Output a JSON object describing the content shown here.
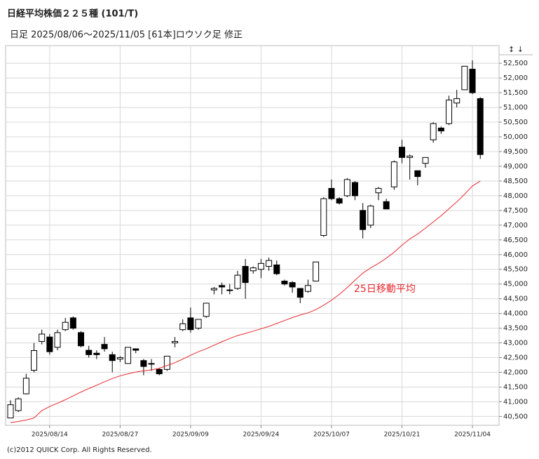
{
  "chart_data": {
    "type": "candlestick",
    "title": "日経平均株価２２５種 (101/T)",
    "subtitle": "日足  2025/08/06～2025/11/05 [61本]ロウソク足 修正",
    "controls": "↕ ↓",
    "footer": "(c)2012 QUICK Corp. All Rights Reserved.",
    "categories": [
      null,
      null,
      null,
      null,
      null,
      "2025/08/14",
      null,
      null,
      null,
      null,
      null,
      null,
      null,
      null,
      "2025/08/27",
      null,
      null,
      null,
      null,
      null,
      null,
      null,
      null,
      "2025/09/09",
      null,
      null,
      null,
      null,
      null,
      null,
      null,
      null,
      "2025/09/24",
      null,
      null,
      null,
      null,
      null,
      null,
      null,
      null,
      "2025/10/07",
      null,
      null,
      null,
      null,
      null,
      null,
      null,
      null,
      "2025/10/21",
      null,
      null,
      null,
      null,
      null,
      null,
      null,
      null,
      "2025/11/04",
      null
    ],
    "open": [
      40450,
      40700,
      41270,
      42070,
      43050,
      43200,
      42850,
      43450,
      43850,
      43350,
      42750,
      42650,
      42950,
      42600,
      42450,
      42300,
      42800,
      42400,
      42300,
      42100,
      42100,
      43000,
      43450,
      43850,
      43500,
      43900,
      44800,
      44950,
      44800,
      44850,
      45600,
      45450,
      45500,
      45600,
      45650,
      45100,
      45050,
      44850,
      44750,
      45100,
      46650,
      48250,
      47900,
      48000,
      48450,
      47500,
      47000,
      48100,
      47800,
      48300,
      49650,
      49300,
      48850,
      49100,
      49900,
      50300,
      50450,
      51150,
      51600,
      52300,
      51300
    ],
    "high": [
      41050,
      41150,
      41950,
      43000,
      43450,
      43300,
      43450,
      43850,
      43900,
      43400,
      42900,
      42750,
      43200,
      42700,
      42550,
      42850,
      42800,
      42450,
      42450,
      42150,
      42550,
      43200,
      43800,
      44200,
      43800,
      44350,
      44900,
      45050,
      45000,
      45450,
      45850,
      45600,
      45850,
      45900,
      45800,
      45150,
      45100,
      44850,
      45150,
      45750,
      47950,
      48550,
      47950,
      48600,
      48500,
      47750,
      47700,
      48300,
      47900,
      49200,
      49900,
      49400,
      48850,
      49300,
      50500,
      50350,
      51400,
      51600,
      52400,
      52600,
      51350
    ],
    "low": [
      40450,
      40650,
      41250,
      42000,
      42950,
      42600,
      42750,
      43400,
      43450,
      42850,
      42500,
      42450,
      42700,
      42000,
      42350,
      42300,
      42650,
      41900,
      42050,
      41900,
      42050,
      42850,
      43400,
      43350,
      43450,
      43850,
      44650,
      44650,
      44650,
      44800,
      44500,
      45350,
      45200,
      45450,
      45300,
      44950,
      44700,
      44350,
      44700,
      45100,
      46600,
      47850,
      47700,
      47950,
      47850,
      46550,
      46900,
      47850,
      47550,
      48200,
      49100,
      48550,
      48350,
      48950,
      49800,
      50100,
      50400,
      51000,
      51600,
      51450,
      49250
    ],
    "close": [
      40900,
      41100,
      41800,
      42740,
      43300,
      42700,
      43350,
      43700,
      43500,
      42900,
      42600,
      42600,
      42800,
      42400,
      42500,
      42850,
      42750,
      42200,
      42300,
      41950,
      42550,
      43050,
      43650,
      43450,
      43800,
      44350,
      44850,
      44900,
      44800,
      45300,
      45050,
      45550,
      45700,
      45800,
      45350,
      45000,
      44900,
      44550,
      44950,
      45750,
      47900,
      47900,
      47750,
      48550,
      48000,
      46850,
      47650,
      48250,
      47550,
      49150,
      49300,
      49350,
      48650,
      49300,
      50450,
      50200,
      51250,
      51300,
      52400,
      51500,
      49400
    ],
    "series": [
      {
        "name": "25日移動平均",
        "color": "#e8282d",
        "values": [
          40290,
          40330,
          40380,
          40450,
          40700,
          40840,
          40950,
          41070,
          41200,
          41330,
          41450,
          41560,
          41680,
          41790,
          41880,
          41950,
          42010,
          42050,
          42080,
          42140,
          42230,
          42330,
          42450,
          42580,
          42700,
          42800,
          42920,
          43040,
          43150,
          43250,
          43320,
          43400,
          43480,
          43560,
          43660,
          43760,
          43860,
          43950,
          44020,
          44130,
          44280,
          44450,
          44650,
          44880,
          45130,
          45370,
          45550,
          45700,
          45880,
          46080,
          46320,
          46530,
          46700,
          46900,
          47110,
          47320,
          47560,
          47790,
          48050,
          48330,
          48500
        ]
      }
    ],
    "ylim": [
      40200,
      53100
    ],
    "yticks": [
      {
        "value": 40500,
        "label": "40,500"
      },
      {
        "value": 41000,
        "label": "41,000"
      },
      {
        "value": 41500,
        "label": "41,500"
      },
      {
        "value": 42000,
        "label": "42,000"
      },
      {
        "value": 42500,
        "label": "42,500"
      },
      {
        "value": 43000,
        "label": "43,000"
      },
      {
        "value": 43500,
        "label": "43,500"
      },
      {
        "value": 44000,
        "label": "44,000"
      },
      {
        "value": 44500,
        "label": "44,500"
      },
      {
        "value": 45000,
        "label": "45,000"
      },
      {
        "value": 45500,
        "label": "45,500"
      },
      {
        "value": 46000,
        "label": "46,000"
      },
      {
        "value": 46500,
        "label": "46,500"
      },
      {
        "value": 47000,
        "label": "47,000"
      },
      {
        "value": 47500,
        "label": "47,500"
      },
      {
        "value": 48000,
        "label": "48,000"
      },
      {
        "value": 48500,
        "label": "48,500"
      },
      {
        "value": 49000,
        "label": "49,000"
      },
      {
        "value": 49500,
        "label": "49,500"
      },
      {
        "value": 50000,
        "label": "50,000"
      },
      {
        "value": 50500,
        "label": "50,500"
      },
      {
        "value": 51000,
        "label": "51,000"
      },
      {
        "value": 51500,
        "label": "51,500"
      },
      {
        "value": 52000,
        "label": "52,000"
      },
      {
        "value": 52500,
        "label": "52,500"
      }
    ],
    "grid": true
  }
}
